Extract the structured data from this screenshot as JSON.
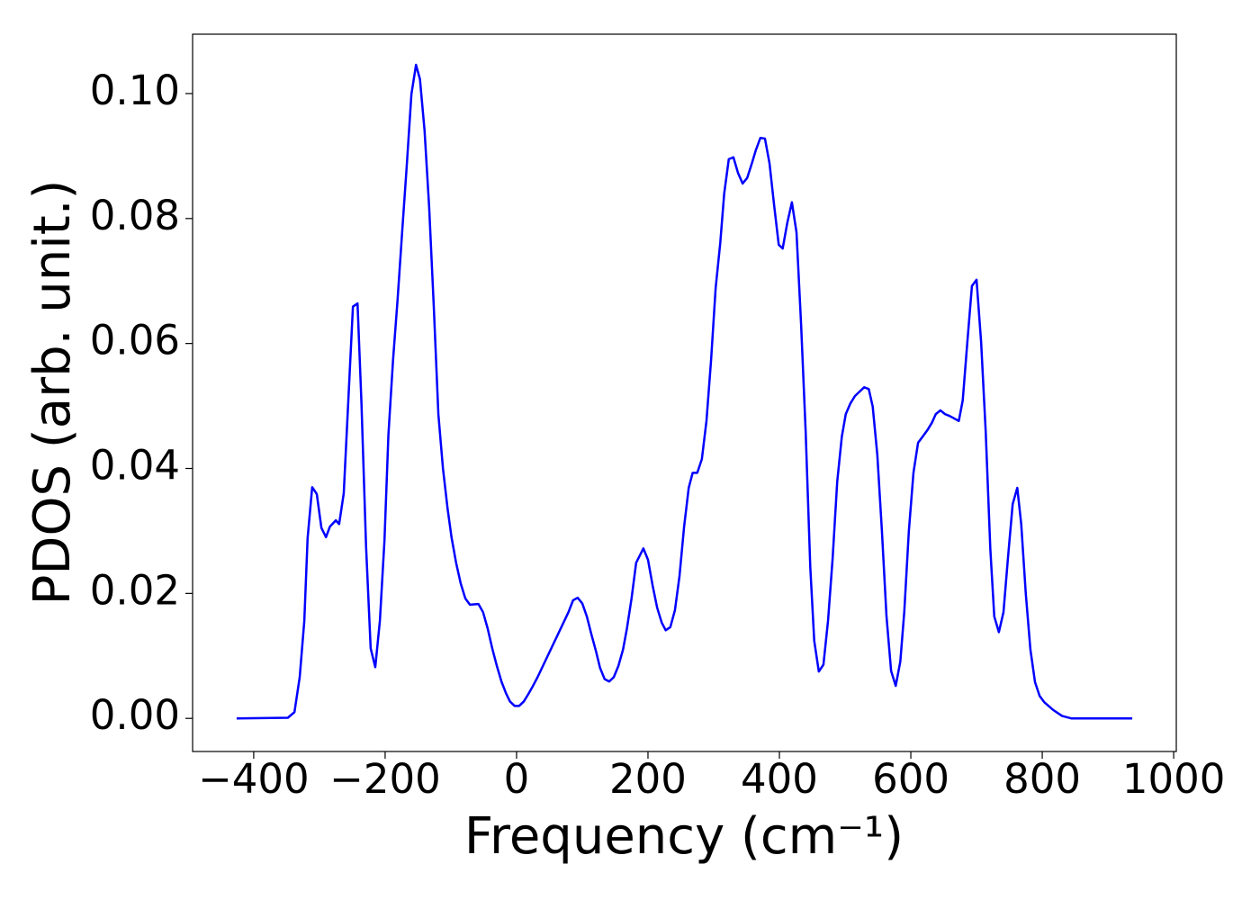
{
  "chart_data": {
    "type": "line",
    "x_label": "Frequency (cm⁻¹)",
    "y_label": "PDOS (arb. unit.)",
    "color": "#0000ff",
    "xlim": [
      -493,
      1004
    ],
    "ylim": [
      -0.0053,
      0.1095
    ],
    "xticks": [
      {
        "value": -400,
        "label": "−400"
      },
      {
        "value": -200,
        "label": "−200"
      },
      0,
      200,
      400,
      600,
      800,
      1000
    ],
    "yticks": [
      {
        "value": 0,
        "label": "0.00"
      },
      {
        "value": 0.02,
        "label": "0.02"
      },
      {
        "value": 0.04,
        "label": "0.04"
      },
      {
        "value": 0.06,
        "label": "0.06"
      },
      {
        "value": 0.08,
        "label": "0.08"
      },
      {
        "value": 0.1,
        "label": "0.10"
      }
    ],
    "x": [
      -426,
      -348,
      -338,
      -330,
      -323,
      -318,
      -311,
      -304,
      -297,
      -290,
      -284,
      -275,
      -270,
      -263,
      -256,
      -249,
      -242,
      -236,
      -229,
      -222,
      -215,
      -208,
      -201,
      -195,
      -188,
      -181,
      -174,
      -167,
      -160,
      -153,
      -147,
      -140,
      -133,
      -126,
      -119,
      -112,
      -105,
      -99,
      -92,
      -85,
      -78,
      -71,
      -58,
      -51,
      -44,
      -37,
      -30,
      -23,
      -16,
      -10,
      -3,
      4,
      11,
      18,
      25,
      32,
      79,
      86,
      93,
      100,
      107,
      114,
      121,
      127,
      134,
      141,
      148,
      155,
      162,
      168,
      175,
      182,
      193,
      200,
      207,
      214,
      221,
      227,
      234,
      241,
      248,
      255,
      262,
      268,
      275,
      282,
      289,
      296,
      303,
      310,
      316,
      323,
      330,
      337,
      344,
      351,
      358,
      364,
      371,
      378,
      385,
      392,
      399,
      405,
      412,
      419,
      426,
      433,
      440,
      447,
      453,
      460,
      467,
      474,
      481,
      488,
      495,
      501,
      508,
      515,
      522,
      529,
      536,
      542,
      549,
      556,
      563,
      570,
      577,
      584,
      590,
      597,
      604,
      611,
      618,
      625,
      632,
      638,
      645,
      652,
      659,
      666,
      673,
      679,
      686,
      693,
      700,
      707,
      714,
      721,
      727,
      734,
      741,
      748,
      755,
      762,
      768,
      775,
      782,
      789,
      796,
      803,
      816,
      830,
      844,
      937
    ],
    "values": [
      0,
      0.0001,
      0.001,
      0.0066,
      0.0156,
      0.0288,
      0.037,
      0.0359,
      0.0305,
      0.029,
      0.0307,
      0.0317,
      0.0311,
      0.036,
      0.0509,
      0.0659,
      0.0664,
      0.0504,
      0.0275,
      0.0112,
      0.0082,
      0.0156,
      0.0285,
      0.0454,
      0.0573,
      0.0671,
      0.078,
      0.0886,
      0.0999,
      0.1046,
      0.1023,
      0.0941,
      0.0818,
      0.066,
      0.0487,
      0.04,
      0.0336,
      0.029,
      0.0249,
      0.0216,
      0.0192,
      0.0182,
      0.0183,
      0.017,
      0.0144,
      0.0112,
      0.0084,
      0.0059,
      0.004,
      0.0027,
      0.002,
      0.002,
      0.0027,
      0.0039,
      0.0052,
      0.0066,
      0.017,
      0.0189,
      0.0193,
      0.0184,
      0.0163,
      0.0134,
      0.0107,
      0.0081,
      0.0063,
      0.0059,
      0.0066,
      0.0084,
      0.011,
      0.0144,
      0.0192,
      0.0249,
      0.0272,
      0.0254,
      0.0213,
      0.0177,
      0.0153,
      0.0141,
      0.0146,
      0.0173,
      0.0228,
      0.0307,
      0.0369,
      0.0393,
      0.0393,
      0.0415,
      0.0476,
      0.0573,
      0.0689,
      0.0761,
      0.084,
      0.0895,
      0.0898,
      0.0873,
      0.0856,
      0.0865,
      0.0888,
      0.0909,
      0.0929,
      0.0928,
      0.0888,
      0.0821,
      0.0758,
      0.0752,
      0.0793,
      0.0826,
      0.0778,
      0.0631,
      0.0458,
      0.0242,
      0.0124,
      0.0075,
      0.0086,
      0.0156,
      0.0256,
      0.0379,
      0.0451,
      0.0487,
      0.0504,
      0.0516,
      0.0523,
      0.053,
      0.0527,
      0.0499,
      0.0422,
      0.03,
      0.0163,
      0.0076,
      0.0052,
      0.0091,
      0.017,
      0.03,
      0.0393,
      0.0441,
      0.0451,
      0.0461,
      0.0473,
      0.0487,
      0.0493,
      0.0487,
      0.0484,
      0.048,
      0.0476,
      0.0509,
      0.0602,
      0.0692,
      0.0702,
      0.0602,
      0.0458,
      0.0271,
      0.0163,
      0.0138,
      0.017,
      0.0259,
      0.0343,
      0.0369,
      0.0311,
      0.0199,
      0.011,
      0.0058,
      0.0036,
      0.0026,
      0.0014,
      0.0004,
      0,
      0
    ]
  }
}
